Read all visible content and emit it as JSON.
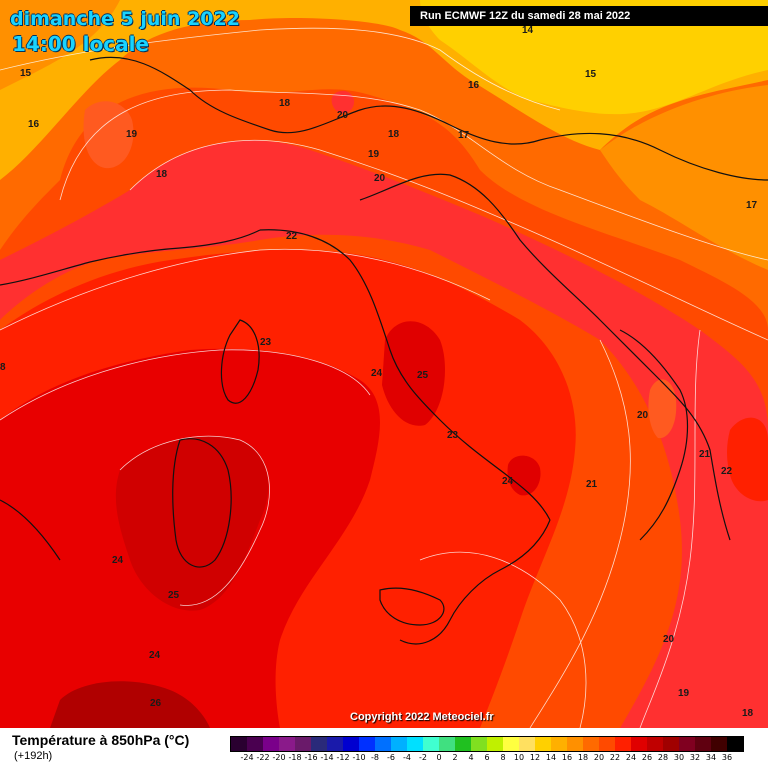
{
  "header": {
    "date_title": "dimanche 5 juin 2022",
    "time_title": "14:00 locale",
    "run_info": "Run ECMWF 12Z du samedi 28 mai 2022"
  },
  "copyright": "Copyright 2022 Meteociel.fr",
  "legend": {
    "title": "Température à 850hPa (°C)",
    "subtitle": "(+192h)",
    "colors": [
      "#2a0030",
      "#4a0050",
      "#7a008a",
      "#8a1a8a",
      "#6a1a6a",
      "#2a2a7a",
      "#1a1aaa",
      "#0000d0",
      "#0030ff",
      "#0070ff",
      "#00b0ff",
      "#00e0ff",
      "#40ffd0",
      "#40e080",
      "#20c020",
      "#80e020",
      "#c0f000",
      "#ffff40",
      "#ffe060",
      "#ffd000",
      "#ffb000",
      "#ff9000",
      "#ff6a00",
      "#ff4a00",
      "#ff2000",
      "#e00000",
      "#c00000",
      "#a00000",
      "#800020",
      "#600010",
      "#400000",
      "#000000"
    ],
    "ticks": [
      "-24",
      "-22",
      "-20",
      "-18",
      "-16",
      "-14",
      "-12",
      "-10",
      "-8",
      "-6",
      "-4",
      "-2",
      "0",
      "2",
      "4",
      "6",
      "8",
      "10",
      "12",
      "14",
      "16",
      "18",
      "20",
      "22",
      "24",
      "26",
      "28",
      "30",
      "32",
      "34",
      "36"
    ]
  },
  "contour_labels": [
    "14",
    "15",
    "15",
    "16",
    "16",
    "17",
    "17",
    "18",
    "18",
    "18",
    "19",
    "19",
    "20",
    "20",
    "20",
    "21",
    "21",
    "22",
    "22",
    "23",
    "23",
    "24",
    "24",
    "24",
    "25",
    "25",
    "26",
    "20",
    "19",
    "18",
    "8"
  ]
}
